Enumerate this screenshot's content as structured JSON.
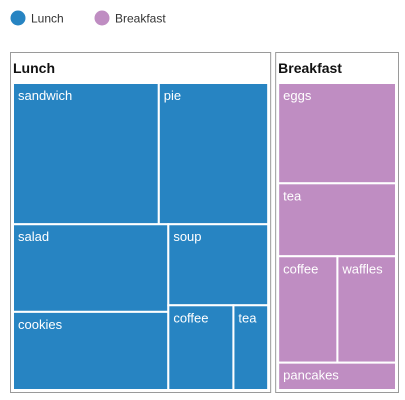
{
  "chart_data": {
    "type": "treemap",
    "legend_position": "top-left",
    "groups": [
      {
        "name": "Lunch",
        "color": "#2784c2",
        "items": [
          {
            "label": "sandwich",
            "value": 28
          },
          {
            "label": "pie",
            "value": 21
          },
          {
            "label": "salad",
            "value": 18.5
          },
          {
            "label": "cookies",
            "value": 16.5
          },
          {
            "label": "soup",
            "value": 11
          },
          {
            "label": "coffee",
            "value": 7.5
          },
          {
            "label": "tea",
            "value": 4
          }
        ]
      },
      {
        "name": "Breakfast",
        "color": "#bf8dc2",
        "items": [
          {
            "label": "eggs",
            "value": 16.5
          },
          {
            "label": "tea",
            "value": 12
          },
          {
            "label": "coffee",
            "value": 8.8
          },
          {
            "label": "waffles",
            "value": 8.7
          },
          {
            "label": "pancakes",
            "value": 4.5
          }
        ]
      }
    ]
  }
}
